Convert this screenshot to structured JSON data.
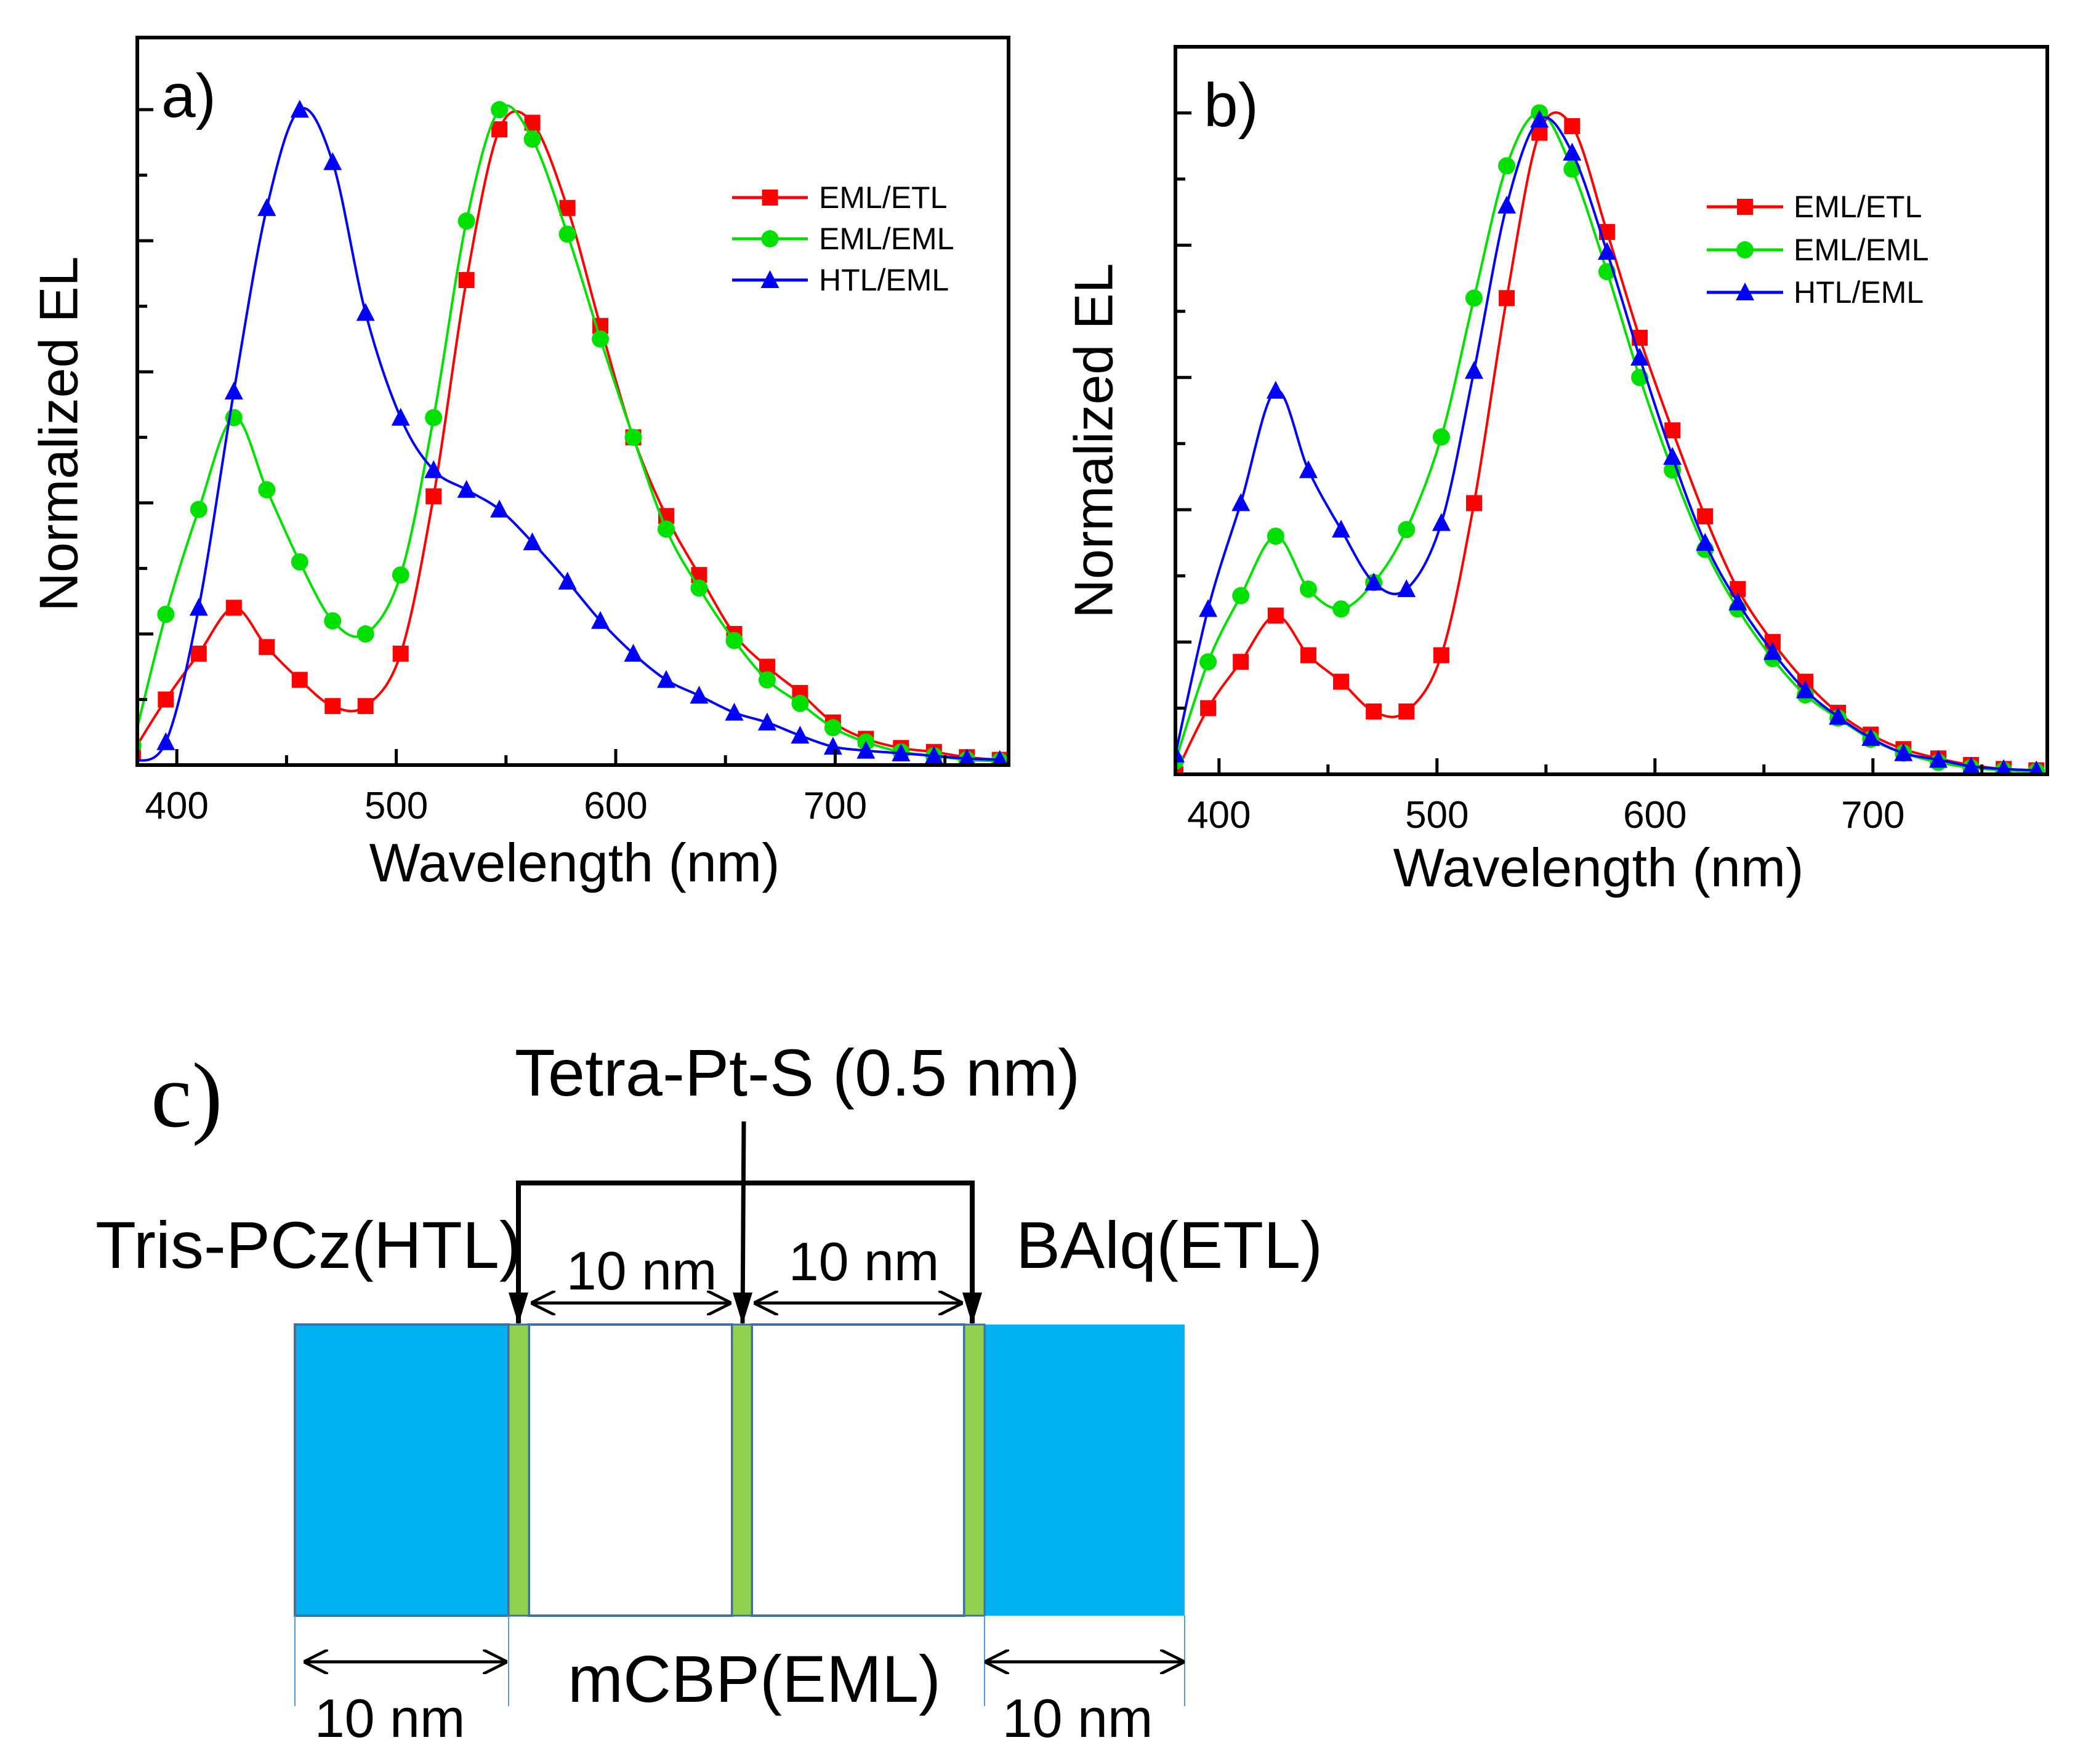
{
  "chart_data": [
    {
      "id": "a",
      "type": "line",
      "panel_label": "a)",
      "xlabel": "Wavelength (nm)",
      "ylabel": "Normalized EL",
      "xlim": [
        382,
        779
      ],
      "ylim": [
        0,
        1.11
      ],
      "xticks": [
        400,
        500,
        600,
        700
      ],
      "xtick_labels": [
        "400",
        "500",
        "600",
        "700"
      ],
      "yticks_unlabeled": [
        0.2,
        0.4,
        0.6,
        0.8,
        1.0
      ],
      "legend_position": "top-right",
      "x": [
        380,
        395,
        410,
        426,
        441,
        456,
        471,
        486,
        502,
        517,
        532,
        547,
        562,
        578,
        593,
        608,
        623,
        638,
        654,
        669,
        684,
        699,
        714,
        730,
        745,
        760,
        775
      ],
      "series": [
        {
          "name": "EML/ETL",
          "color": "#ff0000",
          "marker": "square",
          "values": [
            0.02,
            0.1,
            0.17,
            0.24,
            0.18,
            0.13,
            0.09,
            0.09,
            0.17,
            0.41,
            0.74,
            0.97,
            0.98,
            0.85,
            0.67,
            0.5,
            0.38,
            0.29,
            0.2,
            0.15,
            0.11,
            0.065,
            0.04,
            0.026,
            0.02,
            0.012,
            0.008
          ]
        },
        {
          "name": "EML/EML",
          "color": "#00e000",
          "marker": "circle",
          "values": [
            0.03,
            0.23,
            0.39,
            0.53,
            0.42,
            0.31,
            0.22,
            0.2,
            0.29,
            0.53,
            0.83,
            1.0,
            0.955,
            0.81,
            0.65,
            0.5,
            0.36,
            0.27,
            0.19,
            0.13,
            0.094,
            0.057,
            0.035,
            0.02,
            0.014,
            0.008,
            0.006
          ]
        },
        {
          "name": "HTL/EML",
          "color": "#0000ff",
          "marker": "triangle",
          "values": [
            0.006,
            0.035,
            0.24,
            0.57,
            0.85,
            1.0,
            0.92,
            0.69,
            0.53,
            0.45,
            0.42,
            0.39,
            0.34,
            0.28,
            0.22,
            0.17,
            0.13,
            0.106,
            0.08,
            0.065,
            0.045,
            0.028,
            0.022,
            0.018,
            0.014,
            0.01,
            0.008
          ]
        }
      ]
    },
    {
      "id": "b",
      "type": "line",
      "panel_label": "b)",
      "xlabel": "Wavelength (nm)",
      "ylabel": "Normalized EL",
      "xlim": [
        380,
        780
      ],
      "ylim": [
        0,
        1.1
      ],
      "xticks": [
        400,
        500,
        600,
        700
      ],
      "xtick_labels": [
        "400",
        "500",
        "600",
        "700"
      ],
      "yticks_unlabeled": [
        0.2,
        0.4,
        0.6,
        0.8,
        1.0
      ],
      "legend_position": "top-right",
      "x": [
        380,
        395,
        410,
        426,
        441,
        456,
        471,
        486,
        502,
        517,
        532,
        547,
        562,
        578,
        593,
        608,
        623,
        638,
        654,
        669,
        684,
        699,
        714,
        730,
        745,
        760,
        775
      ],
      "series": [
        {
          "name": "EML/ETL",
          "color": "#ff0000",
          "marker": "square",
          "values": [
            0.0,
            0.1,
            0.17,
            0.24,
            0.18,
            0.14,
            0.095,
            0.095,
            0.18,
            0.41,
            0.72,
            0.97,
            0.98,
            0.82,
            0.66,
            0.52,
            0.39,
            0.28,
            0.2,
            0.14,
            0.093,
            0.06,
            0.038,
            0.024,
            0.014,
            0.008,
            0.006
          ]
        },
        {
          "name": "EML/EML",
          "color": "#00e000",
          "marker": "circle",
          "values": [
            0.02,
            0.17,
            0.27,
            0.36,
            0.28,
            0.25,
            0.29,
            0.37,
            0.51,
            0.72,
            0.92,
            1.0,
            0.915,
            0.76,
            0.6,
            0.46,
            0.34,
            0.25,
            0.175,
            0.12,
            0.085,
            0.053,
            0.032,
            0.018,
            0.01,
            0.006,
            0.004
          ]
        },
        {
          "name": "HTL/EML",
          "color": "#0000ff",
          "marker": "triangle",
          "values": [
            0.03,
            0.25,
            0.41,
            0.58,
            0.46,
            0.37,
            0.29,
            0.28,
            0.38,
            0.61,
            0.86,
            0.99,
            0.94,
            0.79,
            0.63,
            0.48,
            0.35,
            0.26,
            0.185,
            0.127,
            0.087,
            0.055,
            0.032,
            0.022,
            0.012,
            0.008,
            0.006
          ]
        }
      ]
    }
  ],
  "diagram": {
    "panel_label": "c)",
    "dopant_label": "Tetra-Pt-S (0.5 nm)",
    "htl_label": "Tris-PCz(HTL)",
    "etl_label": "BAlq(ETL)",
    "eml_label": "mCBP(EML)",
    "eml_sub1": "10 nm",
    "eml_sub2": "10 nm",
    "htl_thickness": "10 nm",
    "etl_thickness": "10 nm",
    "colors": {
      "transport_layer": "#00b0f0",
      "dopant_layer": "#92d050",
      "eml": "#ffffff"
    }
  }
}
